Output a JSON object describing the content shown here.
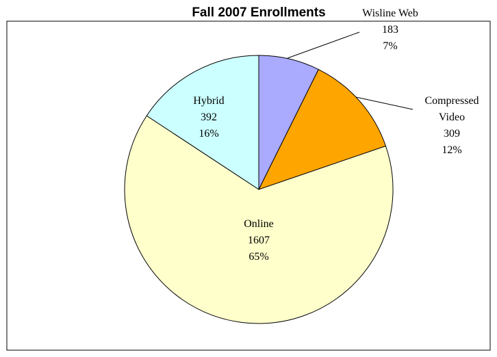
{
  "chart_data": {
    "type": "pie",
    "title": "Fall 2007 Enrollments",
    "categories": [
      "Wisline Web",
      "Compressed Video",
      "Online",
      "Hybrid"
    ],
    "values": [
      183,
      309,
      1607,
      392
    ],
    "percent_labels": [
      "7%",
      "12%",
      "65%",
      "16%"
    ],
    "colors": [
      "#aaaaff",
      "#ffa500",
      "#ffffcc",
      "#ccffff"
    ]
  }
}
